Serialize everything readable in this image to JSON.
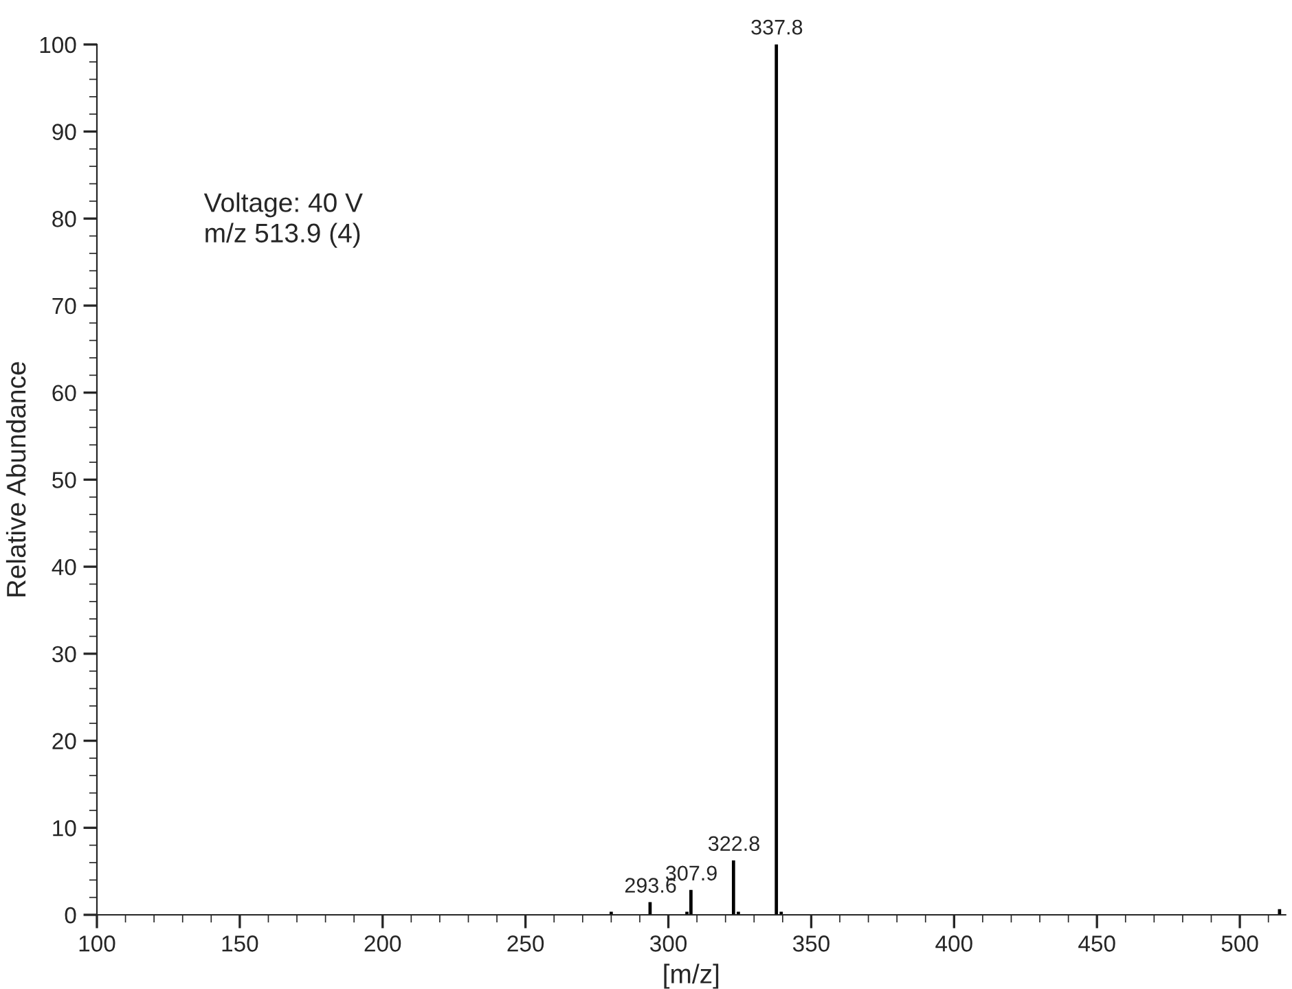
{
  "chart_data": {
    "type": "bar",
    "xlabel": "[m/z]",
    "ylabel": "Relative Abundance",
    "x": [
      280.0,
      293.6,
      306.5,
      307.9,
      322.8,
      324.5,
      337.8,
      339.5,
      513.9
    ],
    "values": [
      0.3,
      1.4,
      0.3,
      2.8,
      6.2,
      0.3,
      100,
      0.3,
      0.6
    ],
    "color": "#000000",
    "xlim": [
      100,
      516
    ],
    "xticks": [
      100,
      150,
      200,
      250,
      300,
      350,
      400,
      450,
      500
    ],
    "ylim": [
      0,
      100
    ],
    "yticks": [
      0,
      10,
      20,
      30,
      40,
      50,
      60,
      70,
      80,
      90,
      100
    ],
    "annotations": [
      "Voltage: 40 V",
      "m/z 513.9 (4)",
      {
        "text": "293.6",
        "x": 293.6,
        "y": 1.4
      },
      {
        "text": "307.9",
        "x": 307.9,
        "y": 2.8
      },
      {
        "text": "322.8",
        "x": 322.8,
        "y": 6.2
      },
      {
        "text": "337.8",
        "x": 337.8,
        "y": 100
      }
    ],
    "grid": false,
    "legend": false
  }
}
